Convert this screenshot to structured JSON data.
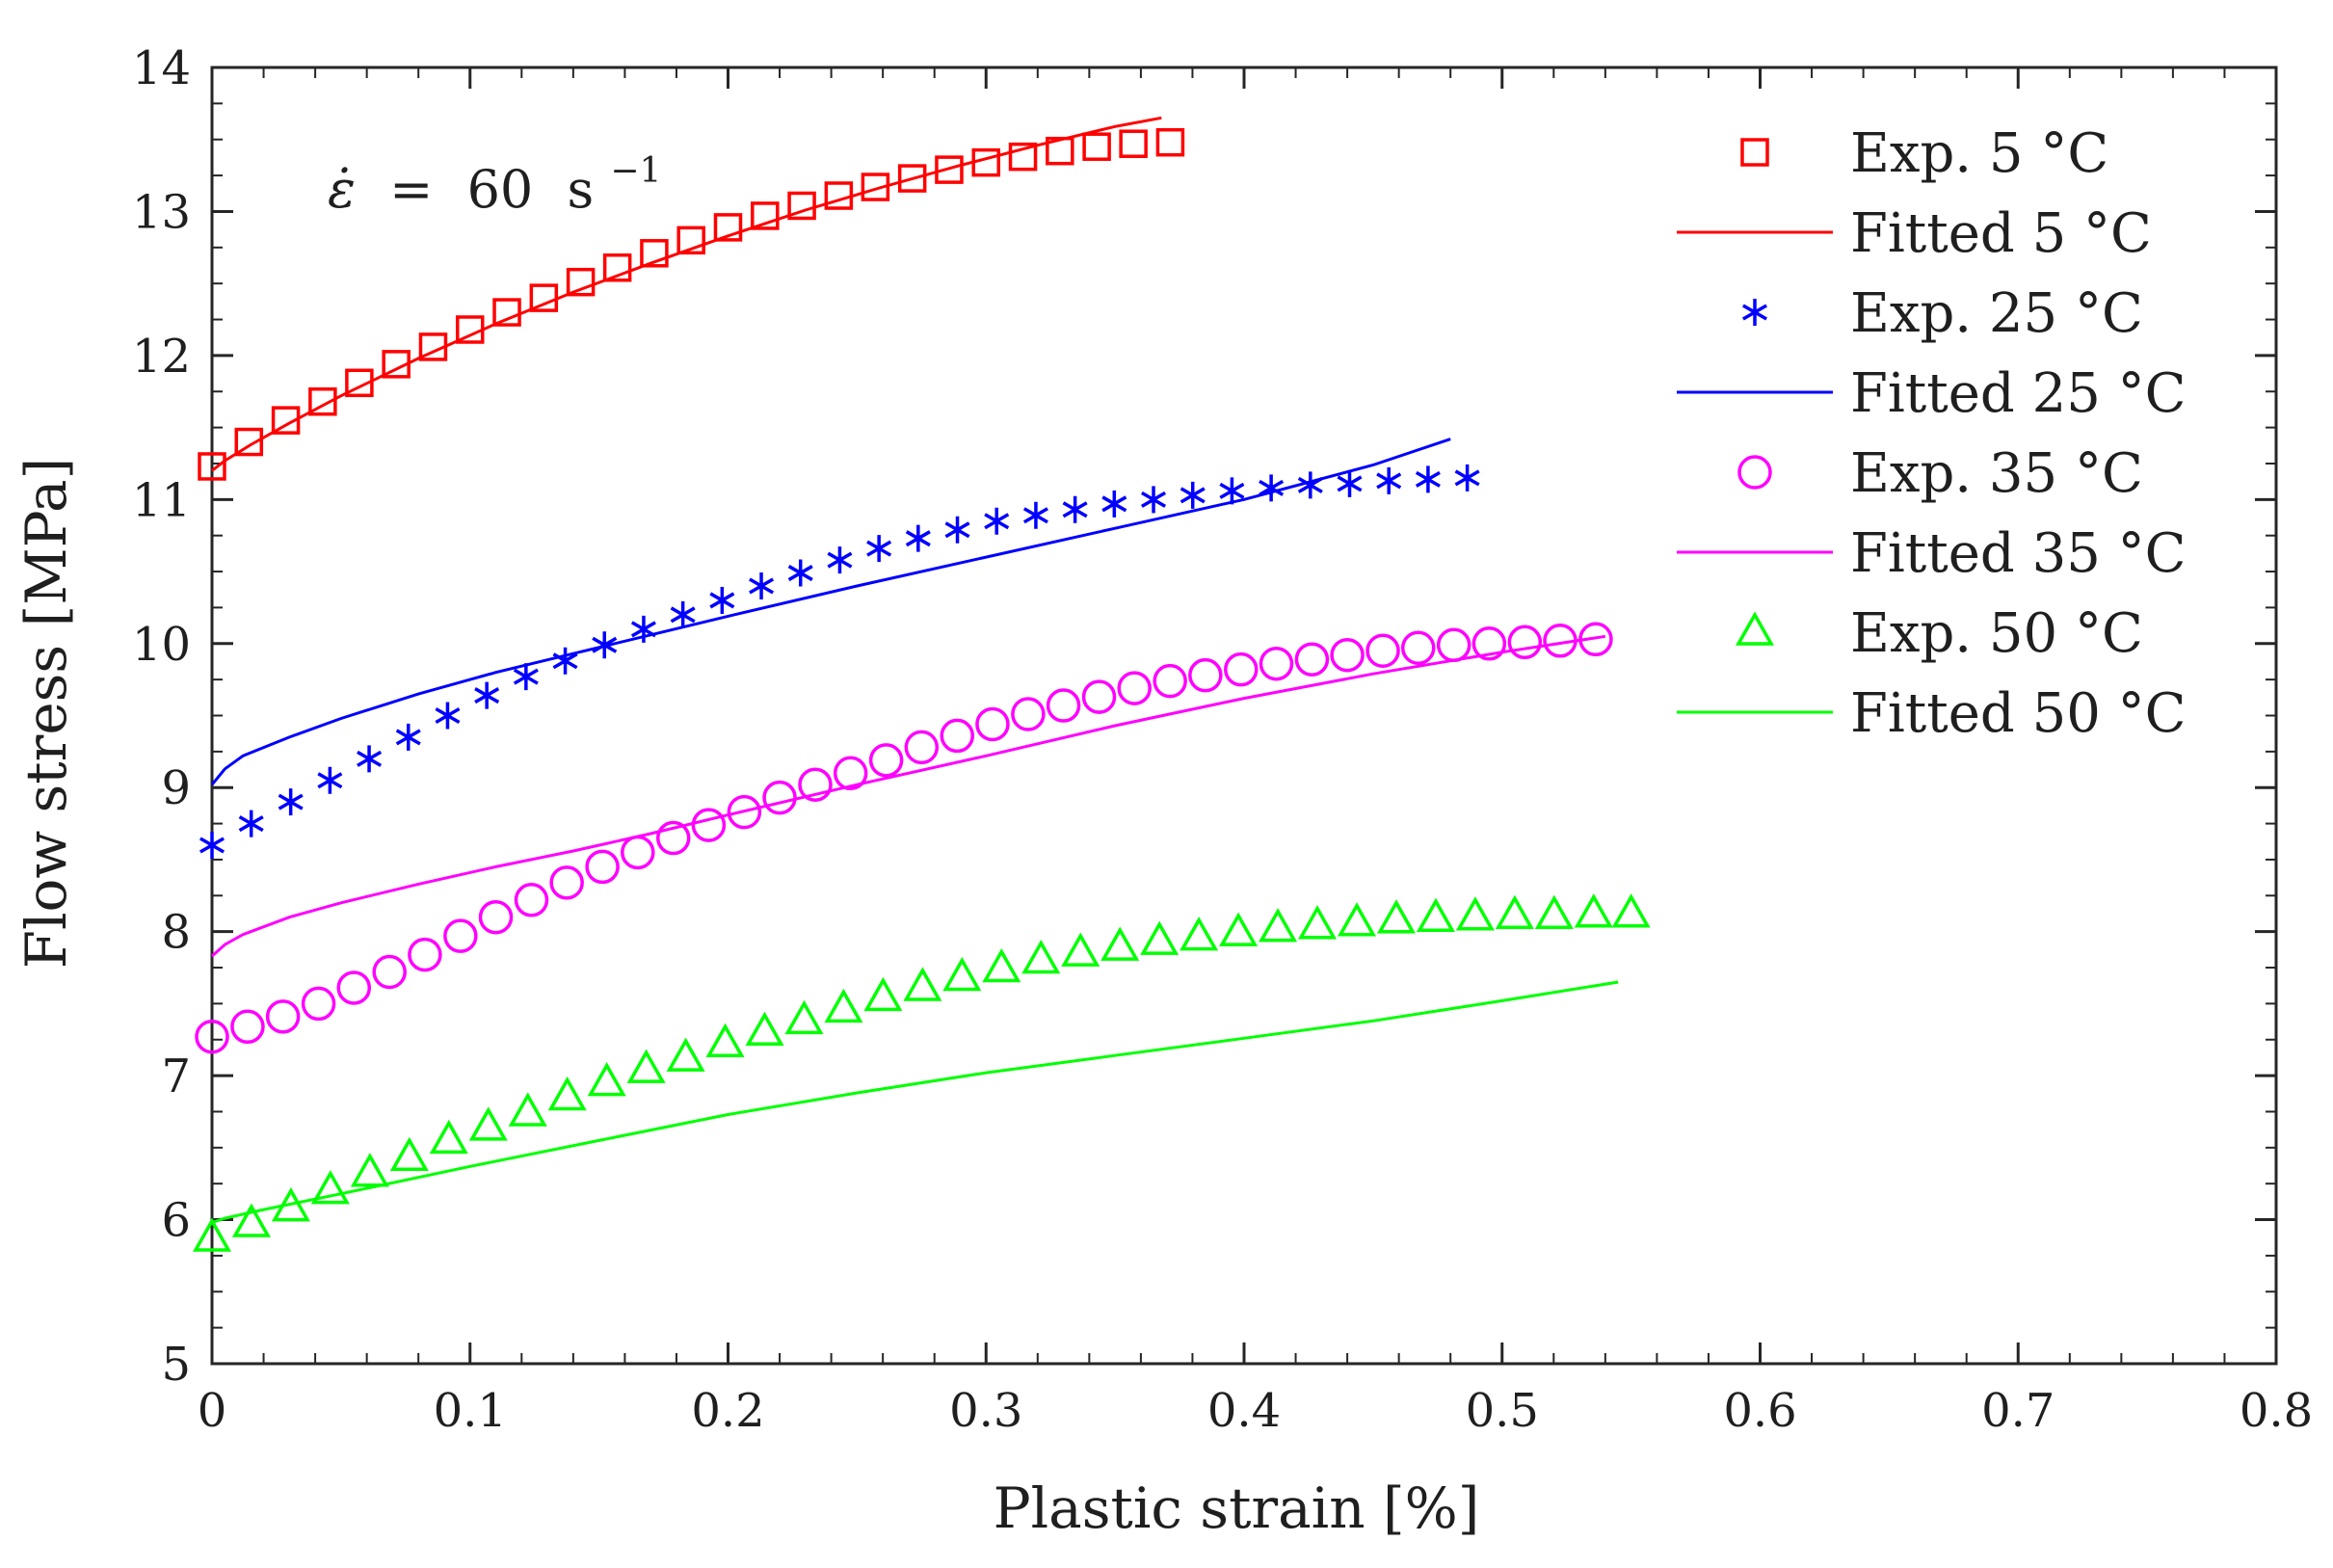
{
  "chart_data": {
    "type": "line",
    "title": "",
    "xlabel": "Plastic strain [%]",
    "ylabel": "Flow stress [MPa]",
    "xlim": [
      0,
      0.8
    ],
    "ylim": [
      5,
      14
    ],
    "xticks": [
      0,
      0.1,
      0.2,
      0.3,
      0.4,
      0.5,
      0.6,
      0.7,
      0.8
    ],
    "xtick_labels": [
      "0",
      "0.1",
      "0.2",
      "0.3",
      "0.4",
      "0.5",
      "0.6",
      "0.7",
      "0.8"
    ],
    "yticks": [
      5,
      6,
      7,
      8,
      9,
      10,
      11,
      12,
      13,
      14
    ],
    "ytick_labels": [
      "5",
      "6",
      "7",
      "8",
      "9",
      "10",
      "11",
      "12",
      "13",
      "14"
    ],
    "grid": false,
    "legend_position": "top-right",
    "annotation": {
      "lhs": "ε̇",
      "eq": "=",
      "value": "60",
      "unit": "s",
      "exponent": "−1"
    },
    "series": [
      {
        "name": "Exp. 5 °C",
        "kind": "marker",
        "marker": "square",
        "color": "#ff0000",
        "x": [
          0.0,
          0.0143,
          0.0286,
          0.0429,
          0.0571,
          0.0714,
          0.0857,
          0.1,
          0.1143,
          0.1286,
          0.1429,
          0.1571,
          0.1714,
          0.1857,
          0.2,
          0.2143,
          0.2286,
          0.2429,
          0.2571,
          0.2714,
          0.2857,
          0.3,
          0.3143,
          0.3286,
          0.3429,
          0.3571,
          0.3714
        ],
        "y": [
          11.23,
          11.4,
          11.55,
          11.68,
          11.81,
          11.94,
          12.06,
          12.18,
          12.3,
          12.4,
          12.51,
          12.61,
          12.71,
          12.8,
          12.89,
          12.97,
          13.04,
          13.11,
          13.17,
          13.23,
          13.29,
          13.34,
          13.38,
          13.42,
          13.45,
          13.47,
          13.48
        ]
      },
      {
        "name": "Fitted 5 °C",
        "kind": "line",
        "color": "#ff0000",
        "x": [
          0.0,
          0.005,
          0.015,
          0.03,
          0.05,
          0.08,
          0.11,
          0.14,
          0.17,
          0.2,
          0.23,
          0.26,
          0.29,
          0.32,
          0.35,
          0.368
        ],
        "y": [
          11.2,
          11.27,
          11.38,
          11.53,
          11.72,
          11.98,
          12.22,
          12.44,
          12.64,
          12.83,
          13.01,
          13.17,
          13.32,
          13.46,
          13.59,
          13.65
        ]
      },
      {
        "name": "Exp. 25 °C",
        "kind": "marker",
        "marker": "asterisk",
        "color": "#0000ff",
        "x": [
          0.0,
          0.0152,
          0.0305,
          0.0457,
          0.0609,
          0.0761,
          0.0913,
          0.1065,
          0.1217,
          0.1369,
          0.1521,
          0.1673,
          0.1825,
          0.1977,
          0.2129,
          0.2281,
          0.2433,
          0.2585,
          0.2737,
          0.2889,
          0.3041,
          0.3193,
          0.3345,
          0.3497,
          0.3649,
          0.3801,
          0.3953,
          0.4105,
          0.4257,
          0.4409,
          0.4561,
          0.4713,
          0.4865
        ],
        "y": [
          8.6,
          8.75,
          8.9,
          9.05,
          9.2,
          9.35,
          9.5,
          9.64,
          9.77,
          9.88,
          9.99,
          10.1,
          10.2,
          10.3,
          10.4,
          10.49,
          10.58,
          10.66,
          10.73,
          10.79,
          10.85,
          10.89,
          10.93,
          10.97,
          11.0,
          11.03,
          11.06,
          11.08,
          11.1,
          11.11,
          11.13,
          11.14,
          11.15
        ]
      },
      {
        "name": "Fitted 25 °C",
        "kind": "line",
        "color": "#0000ff",
        "x": [
          0.0,
          0.005,
          0.012,
          0.03,
          0.05,
          0.08,
          0.11,
          0.14,
          0.17,
          0.2,
          0.25,
          0.3,
          0.35,
          0.4,
          0.45,
          0.48
        ],
        "y": [
          9.02,
          9.13,
          9.22,
          9.35,
          9.48,
          9.65,
          9.8,
          9.93,
          10.06,
          10.19,
          10.4,
          10.6,
          10.8,
          11.0,
          11.24,
          11.42
        ]
      },
      {
        "name": "Exp. 35 °C",
        "kind": "marker",
        "marker": "circle",
        "color": "#ff00ff",
        "x": [
          0.0,
          0.0138,
          0.0275,
          0.0413,
          0.055,
          0.0688,
          0.0825,
          0.0963,
          0.11,
          0.1238,
          0.1375,
          0.1513,
          0.165,
          0.1788,
          0.1925,
          0.2063,
          0.22,
          0.2338,
          0.2475,
          0.2613,
          0.275,
          0.2888,
          0.3025,
          0.3163,
          0.33,
          0.3438,
          0.3575,
          0.3713,
          0.385,
          0.3988,
          0.4125,
          0.4263,
          0.44,
          0.4538,
          0.4675,
          0.4813,
          0.495,
          0.5088,
          0.5225,
          0.5363
        ],
        "y": [
          7.27,
          7.34,
          7.41,
          7.5,
          7.61,
          7.72,
          7.84,
          7.97,
          8.1,
          8.22,
          8.34,
          8.45,
          8.55,
          8.65,
          8.74,
          8.83,
          8.93,
          9.02,
          9.1,
          9.19,
          9.28,
          9.36,
          9.44,
          9.51,
          9.57,
          9.63,
          9.69,
          9.74,
          9.78,
          9.82,
          9.86,
          9.89,
          9.92,
          9.95,
          9.97,
          9.99,
          10.0,
          10.01,
          10.02,
          10.03
        ]
      },
      {
        "name": "Fitted 35 °C",
        "kind": "line",
        "color": "#ff00ff",
        "x": [
          0.0,
          0.005,
          0.012,
          0.03,
          0.05,
          0.08,
          0.11,
          0.14,
          0.17,
          0.2,
          0.25,
          0.3,
          0.35,
          0.4,
          0.45,
          0.5,
          0.54
        ],
        "y": [
          7.83,
          7.91,
          7.98,
          8.1,
          8.2,
          8.33,
          8.45,
          8.56,
          8.68,
          8.81,
          9.02,
          9.22,
          9.43,
          9.62,
          9.79,
          9.94,
          10.05
        ]
      },
      {
        "name": "Exp. 50 °C",
        "kind": "marker",
        "marker": "triangle",
        "color": "#00ff00",
        "x": [
          0.0,
          0.0153,
          0.0306,
          0.0459,
          0.0612,
          0.0765,
          0.0918,
          0.1071,
          0.1224,
          0.1377,
          0.153,
          0.1683,
          0.1836,
          0.1989,
          0.2142,
          0.2295,
          0.2448,
          0.2601,
          0.2754,
          0.2907,
          0.306,
          0.3213,
          0.3366,
          0.3519,
          0.3672,
          0.3825,
          0.3978,
          0.4131,
          0.4284,
          0.4437,
          0.459,
          0.4743,
          0.4896,
          0.5049,
          0.5202,
          0.5355,
          0.55
        ],
        "y": [
          5.87,
          5.97,
          6.08,
          6.2,
          6.32,
          6.43,
          6.55,
          6.64,
          6.74,
          6.85,
          6.95,
          7.04,
          7.12,
          7.22,
          7.3,
          7.38,
          7.46,
          7.54,
          7.61,
          7.68,
          7.74,
          7.8,
          7.85,
          7.89,
          7.93,
          7.96,
          7.99,
          8.02,
          8.04,
          8.06,
          8.08,
          8.09,
          8.1,
          8.11,
          8.11,
          8.12,
          8.12
        ]
      },
      {
        "name": "Fitted 50 °C",
        "kind": "line",
        "color": "#00ff00",
        "x": [
          0.0,
          0.005,
          0.02,
          0.05,
          0.1,
          0.15,
          0.2,
          0.25,
          0.3,
          0.35,
          0.4,
          0.45,
          0.5,
          0.545
        ],
        "y": [
          5.98,
          6.01,
          6.07,
          6.18,
          6.37,
          6.55,
          6.73,
          6.88,
          7.02,
          7.14,
          7.26,
          7.38,
          7.52,
          7.65
        ]
      }
    ]
  }
}
